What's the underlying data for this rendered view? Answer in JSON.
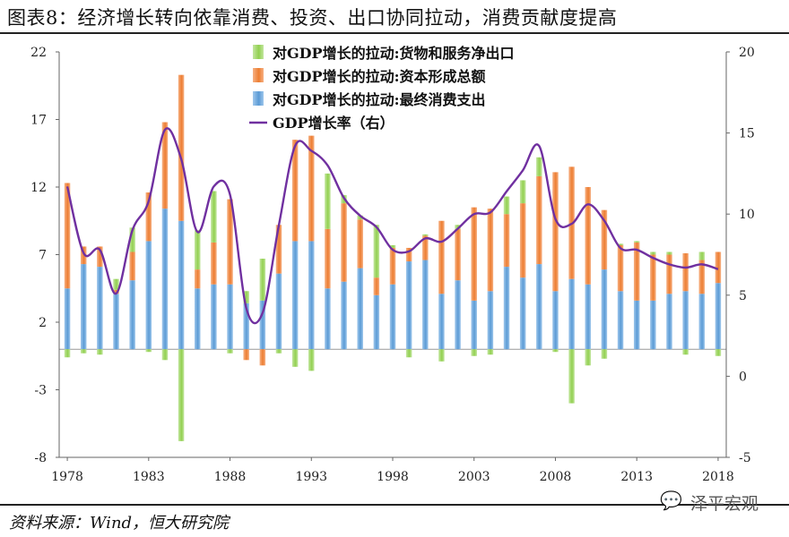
{
  "header": {
    "title": "图表8：经济增长转向依靠消费、投资、出口协同拉动，消费贡献度提高"
  },
  "footer": {
    "source": "资料来源：Wind，恒大研究院",
    "watermark": "泽平宏观"
  },
  "chart_data": {
    "type": "bar",
    "stacked": true,
    "x": [
      1978,
      1979,
      1980,
      1981,
      1982,
      1983,
      1984,
      1985,
      1986,
      1987,
      1988,
      1989,
      1990,
      1991,
      1992,
      1993,
      1994,
      1995,
      1996,
      1997,
      1998,
      1999,
      2000,
      2001,
      2002,
      2003,
      2004,
      2005,
      2006,
      2007,
      2008,
      2009,
      2010,
      2011,
      2012,
      2013,
      2014,
      2015,
      2016,
      2017,
      2018
    ],
    "x_tick_labels": [
      "1978",
      "1983",
      "1988",
      "1993",
      "1998",
      "2003",
      "2008",
      "2013",
      "2018"
    ],
    "left_axis": {
      "ylim": [
        -8,
        22
      ],
      "ticks": [
        "22",
        "17",
        "12",
        "7",
        "2",
        "-3",
        "-8"
      ]
    },
    "right_axis": {
      "ylim": [
        -5,
        20
      ],
      "ticks": [
        "20",
        "15",
        "10",
        "5",
        "0",
        "-5"
      ]
    },
    "legend_position": "top-center",
    "series": [
      {
        "name": "对GDP增长的拉动:最终消费支出",
        "axis": "left",
        "color": "#5b9bd5",
        "values": [
          4.5,
          6.3,
          6.1,
          4.1,
          5.1,
          8.0,
          10.4,
          9.5,
          4.5,
          4.8,
          4.8,
          3.4,
          3.6,
          5.6,
          8.0,
          8.0,
          4.5,
          5.0,
          6.0,
          4.0,
          4.8,
          6.5,
          6.6,
          4.1,
          5.1,
          3.6,
          4.3,
          6.1,
          5.3,
          6.3,
          4.3,
          5.2,
          4.8,
          5.9,
          4.3,
          3.6,
          3.6,
          4.1,
          4.3,
          4.1,
          4.9
        ]
      },
      {
        "name": "对GDP增长的拉动:资本形成总额",
        "axis": "left",
        "color": "#ed7d31",
        "values": [
          7.8,
          1.3,
          1.5,
          0.3,
          2.1,
          3.6,
          6.4,
          10.8,
          1.4,
          3.1,
          6.3,
          -0.8,
          -1.2,
          3.6,
          7.5,
          7.8,
          4.4,
          5.8,
          3.6,
          1.3,
          2.7,
          1.0,
          1.8,
          5.4,
          3.8,
          6.9,
          6.1,
          3.9,
          5.5,
          6.5,
          8.8,
          8.3,
          7.2,
          4.4,
          3.4,
          4.3,
          3.4,
          2.9,
          2.8,
          2.5,
          2.3
        ]
      },
      {
        "name": "对GDP增长的拉动:货物和服务净出口",
        "axis": "left",
        "color": "#92d050",
        "values": [
          -0.6,
          -0.3,
          -0.4,
          0.8,
          1.8,
          -0.2,
          -0.8,
          -6.8,
          2.9,
          3.8,
          -0.3,
          0.9,
          3.1,
          -0.3,
          -1.3,
          -1.6,
          4.1,
          0.6,
          0.3,
          3.9,
          0.2,
          -0.6,
          0.1,
          -0.9,
          0.3,
          -0.5,
          -0.4,
          1.3,
          1.7,
          1.4,
          -0.2,
          -4.0,
          -1.2,
          -0.7,
          0.1,
          0.1,
          0.2,
          0.2,
          -0.4,
          0.6,
          -0.5
        ]
      },
      {
        "name": "GDP增长率（右）",
        "axis": "right",
        "type": "line",
        "color": "#7030a0",
        "values": [
          11.7,
          7.6,
          7.8,
          5.1,
          9.0,
          10.8,
          15.2,
          13.4,
          8.9,
          11.7,
          11.2,
          4.2,
          3.9,
          9.3,
          14.2,
          13.9,
          13.0,
          11.0,
          9.9,
          9.2,
          7.8,
          7.7,
          8.5,
          8.3,
          9.1,
          10.0,
          10.1,
          11.4,
          12.7,
          14.2,
          9.7,
          9.4,
          10.6,
          9.6,
          7.9,
          7.8,
          7.3,
          6.9,
          6.7,
          6.9,
          6.6
        ]
      }
    ]
  }
}
